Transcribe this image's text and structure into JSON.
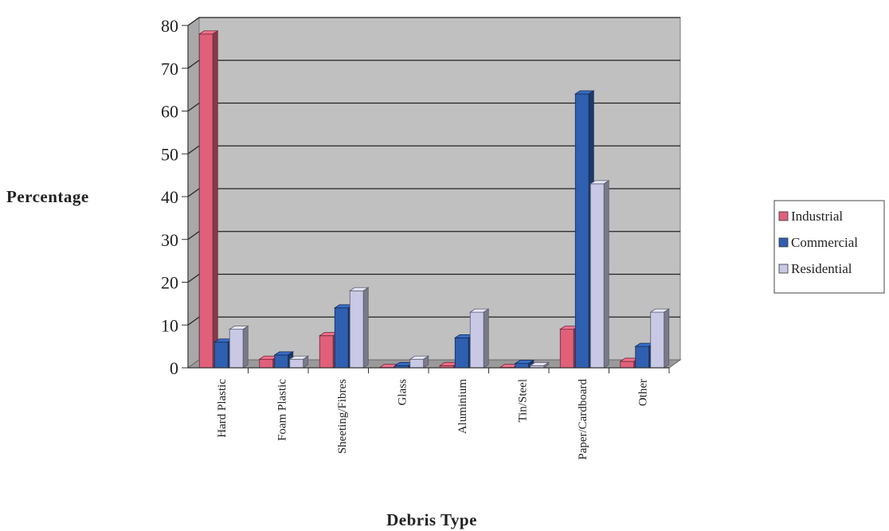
{
  "chart_data": {
    "type": "bar",
    "title": "",
    "xlabel": "Debris Type",
    "ylabel": "Percentage",
    "ylim": [
      0,
      80
    ],
    "yticks": [
      "0",
      "10",
      "20",
      "30",
      "40",
      "50",
      "60",
      "70",
      "80"
    ],
    "categories": [
      "Hard Plastic",
      "Foam Plastic",
      "Sheeting/Fibres",
      "Glass",
      "Aluminium",
      "Tin/Steel",
      "Paper/Cardboard",
      "Other"
    ],
    "series": [
      {
        "name": "Industrial",
        "color": "#e0607a",
        "values": [
          78,
          2,
          7.5,
          0,
          0.5,
          0,
          9,
          1.5
        ]
      },
      {
        "name": "Commercial",
        "color": "#2f5fb0",
        "values": [
          6,
          3,
          14,
          0.5,
          7,
          1,
          64,
          5
        ]
      },
      {
        "name": "Residential",
        "color": "#c9c9e6",
        "values": [
          9,
          2,
          18,
          2,
          13,
          0.5,
          43,
          13
        ]
      }
    ],
    "grid": true,
    "legend": "right",
    "plot_background": "#c0c0c0"
  }
}
